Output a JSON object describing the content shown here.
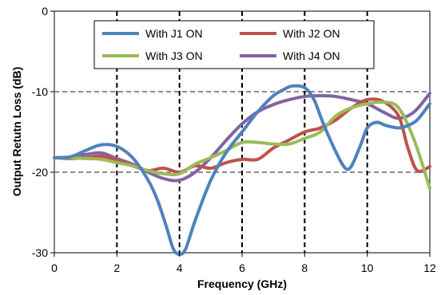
{
  "chart_data": {
    "type": "line",
    "xlabel": "Frequency (GHz)",
    "ylabel": "Output Retutn Loss (dB)",
    "xlim": [
      0,
      12
    ],
    "ylim": [
      -30,
      0
    ],
    "x_ticks": [
      "0",
      "2",
      "4",
      "6",
      "8",
      "10",
      "12"
    ],
    "y_ticks": [
      "0",
      "-10",
      "-20",
      "-30"
    ],
    "grid": {
      "horizontal_dashed_at": [
        -10,
        -20
      ],
      "vertical_dashed_at": [
        2,
        4,
        6,
        8,
        10
      ]
    },
    "legend_position": "top-center",
    "series": [
      {
        "name": "With J1 ON",
        "color": "#4f81bd",
        "x": [
          0,
          0.5,
          1,
          1.5,
          2,
          2.5,
          3,
          3.3,
          3.6,
          3.8,
          4,
          4.2,
          4.5,
          5,
          5.5,
          6,
          6.5,
          7,
          7.3,
          7.6,
          8,
          8.3,
          8.6,
          9,
          9.3,
          9.5,
          9.8,
          10,
          10.3,
          10.6,
          11,
          11.3,
          11.6,
          12
        ],
        "y": [
          -18.2,
          -18.1,
          -17.3,
          -16.6,
          -16.8,
          -18.2,
          -21,
          -23.5,
          -27,
          -29.5,
          -30.2,
          -29.5,
          -26,
          -21,
          -17.5,
          -15,
          -12.5,
          -10.5,
          -9.8,
          -9.3,
          -9.5,
          -11,
          -14,
          -17.5,
          -19.5,
          -19.2,
          -16.5,
          -14.5,
          -13.8,
          -14.2,
          -14.5,
          -14.2,
          -13.5,
          -11.5
        ]
      },
      {
        "name": "With J2 ON",
        "color": "#c0504d",
        "x": [
          0,
          0.5,
          1,
          1.5,
          2,
          2.5,
          3,
          3.5,
          4,
          4.5,
          5,
          5.5,
          6,
          6.5,
          7,
          7.5,
          8,
          8.5,
          9,
          9.5,
          10,
          10.5,
          11,
          11.3,
          11.6,
          12
        ],
        "y": [
          -18.2,
          -18.3,
          -18.2,
          -18,
          -18.5,
          -19.2,
          -19.8,
          -19.5,
          -20,
          -19.2,
          -19.5,
          -18.8,
          -18.4,
          -18.4,
          -17,
          -16,
          -15,
          -14.5,
          -13.5,
          -12,
          -11,
          -11.2,
          -13,
          -17,
          -19.8,
          -19.3
        ]
      },
      {
        "name": "With J3 ON",
        "color": "#9bbb59",
        "x": [
          0,
          0.5,
          1,
          1.5,
          2,
          2.5,
          3,
          3.5,
          4,
          4.5,
          5,
          5.5,
          6,
          6.5,
          7,
          7.5,
          8,
          8.5,
          9,
          9.5,
          10,
          10.5,
          11,
          11.5,
          12
        ],
        "y": [
          -18.2,
          -18.2,
          -18.3,
          -18.4,
          -18.8,
          -19.2,
          -19.8,
          -20.2,
          -20.2,
          -19,
          -18.2,
          -17.3,
          -16.3,
          -16.3,
          -16.5,
          -16.5,
          -15.8,
          -15,
          -13,
          -12,
          -11.5,
          -11.3,
          -12,
          -16,
          -22
        ]
      },
      {
        "name": "With J4 ON",
        "color": "#8064a2",
        "x": [
          0,
          0.5,
          1,
          1.5,
          2,
          2.5,
          3,
          3.5,
          4,
          4.5,
          5,
          5.5,
          6,
          6.5,
          7,
          7.5,
          8,
          8.5,
          9,
          9.5,
          10,
          10.5,
          11,
          11.5,
          12
        ],
        "y": [
          -18.2,
          -18.1,
          -17.8,
          -17.6,
          -18.3,
          -19,
          -20,
          -20.8,
          -21,
          -20,
          -18.2,
          -16,
          -14,
          -12.5,
          -11.6,
          -11,
          -10.6,
          -10.5,
          -10.6,
          -11,
          -11.5,
          -12.5,
          -13.3,
          -12.5,
          -10.2
        ]
      }
    ]
  }
}
